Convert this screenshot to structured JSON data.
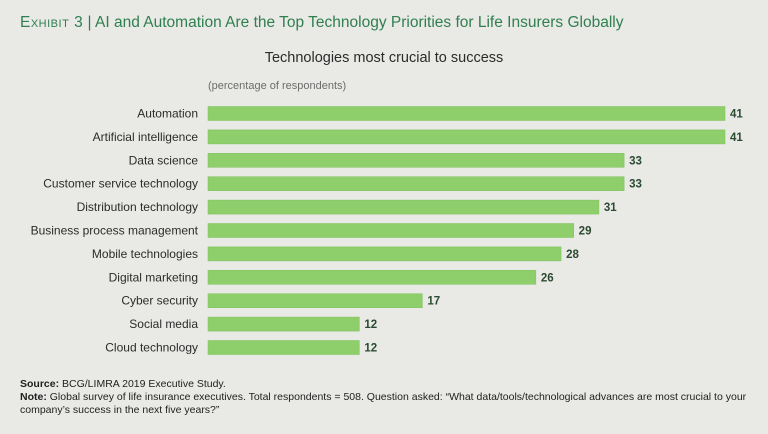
{
  "exhibit": {
    "label": "Exhibit 3",
    "separator": "|",
    "title": "AI and Automation Are the Top Technology Priorities for Life Insurers Globally"
  },
  "chart_data": {
    "type": "bar",
    "orientation": "horizontal",
    "title": "Technologies most crucial to success",
    "unit_label": "(percentage of respondents)",
    "categories": [
      "Automation",
      "Artificial intelligence",
      "Data science",
      "Customer service technology",
      "Distribution technology",
      "Business process management",
      "Mobile technologies",
      "Digital marketing",
      "Cyber security",
      "Social media",
      "Cloud technology"
    ],
    "values": [
      41,
      41,
      33,
      33,
      31,
      29,
      28,
      26,
      17,
      12,
      12
    ],
    "xlim": [
      0,
      41
    ],
    "grid": false,
    "colors": {
      "bar": "#8fcf6b",
      "bar_stroke": "#7dbf5a",
      "value_label": "#2b4a30"
    }
  },
  "footer": {
    "source_label": "Source:",
    "source_text": "BCG/LIMRA 2019 Executive Study.",
    "note_label": "Note:",
    "note_text": "Global survey of life insurance executives. Total respondents = 508. Question asked: “What data/tools/technological advances are most crucial to your company’s success in the next five years?”"
  },
  "colors": {
    "background": "#e9e9e6",
    "accent": "#2f7f4f"
  }
}
